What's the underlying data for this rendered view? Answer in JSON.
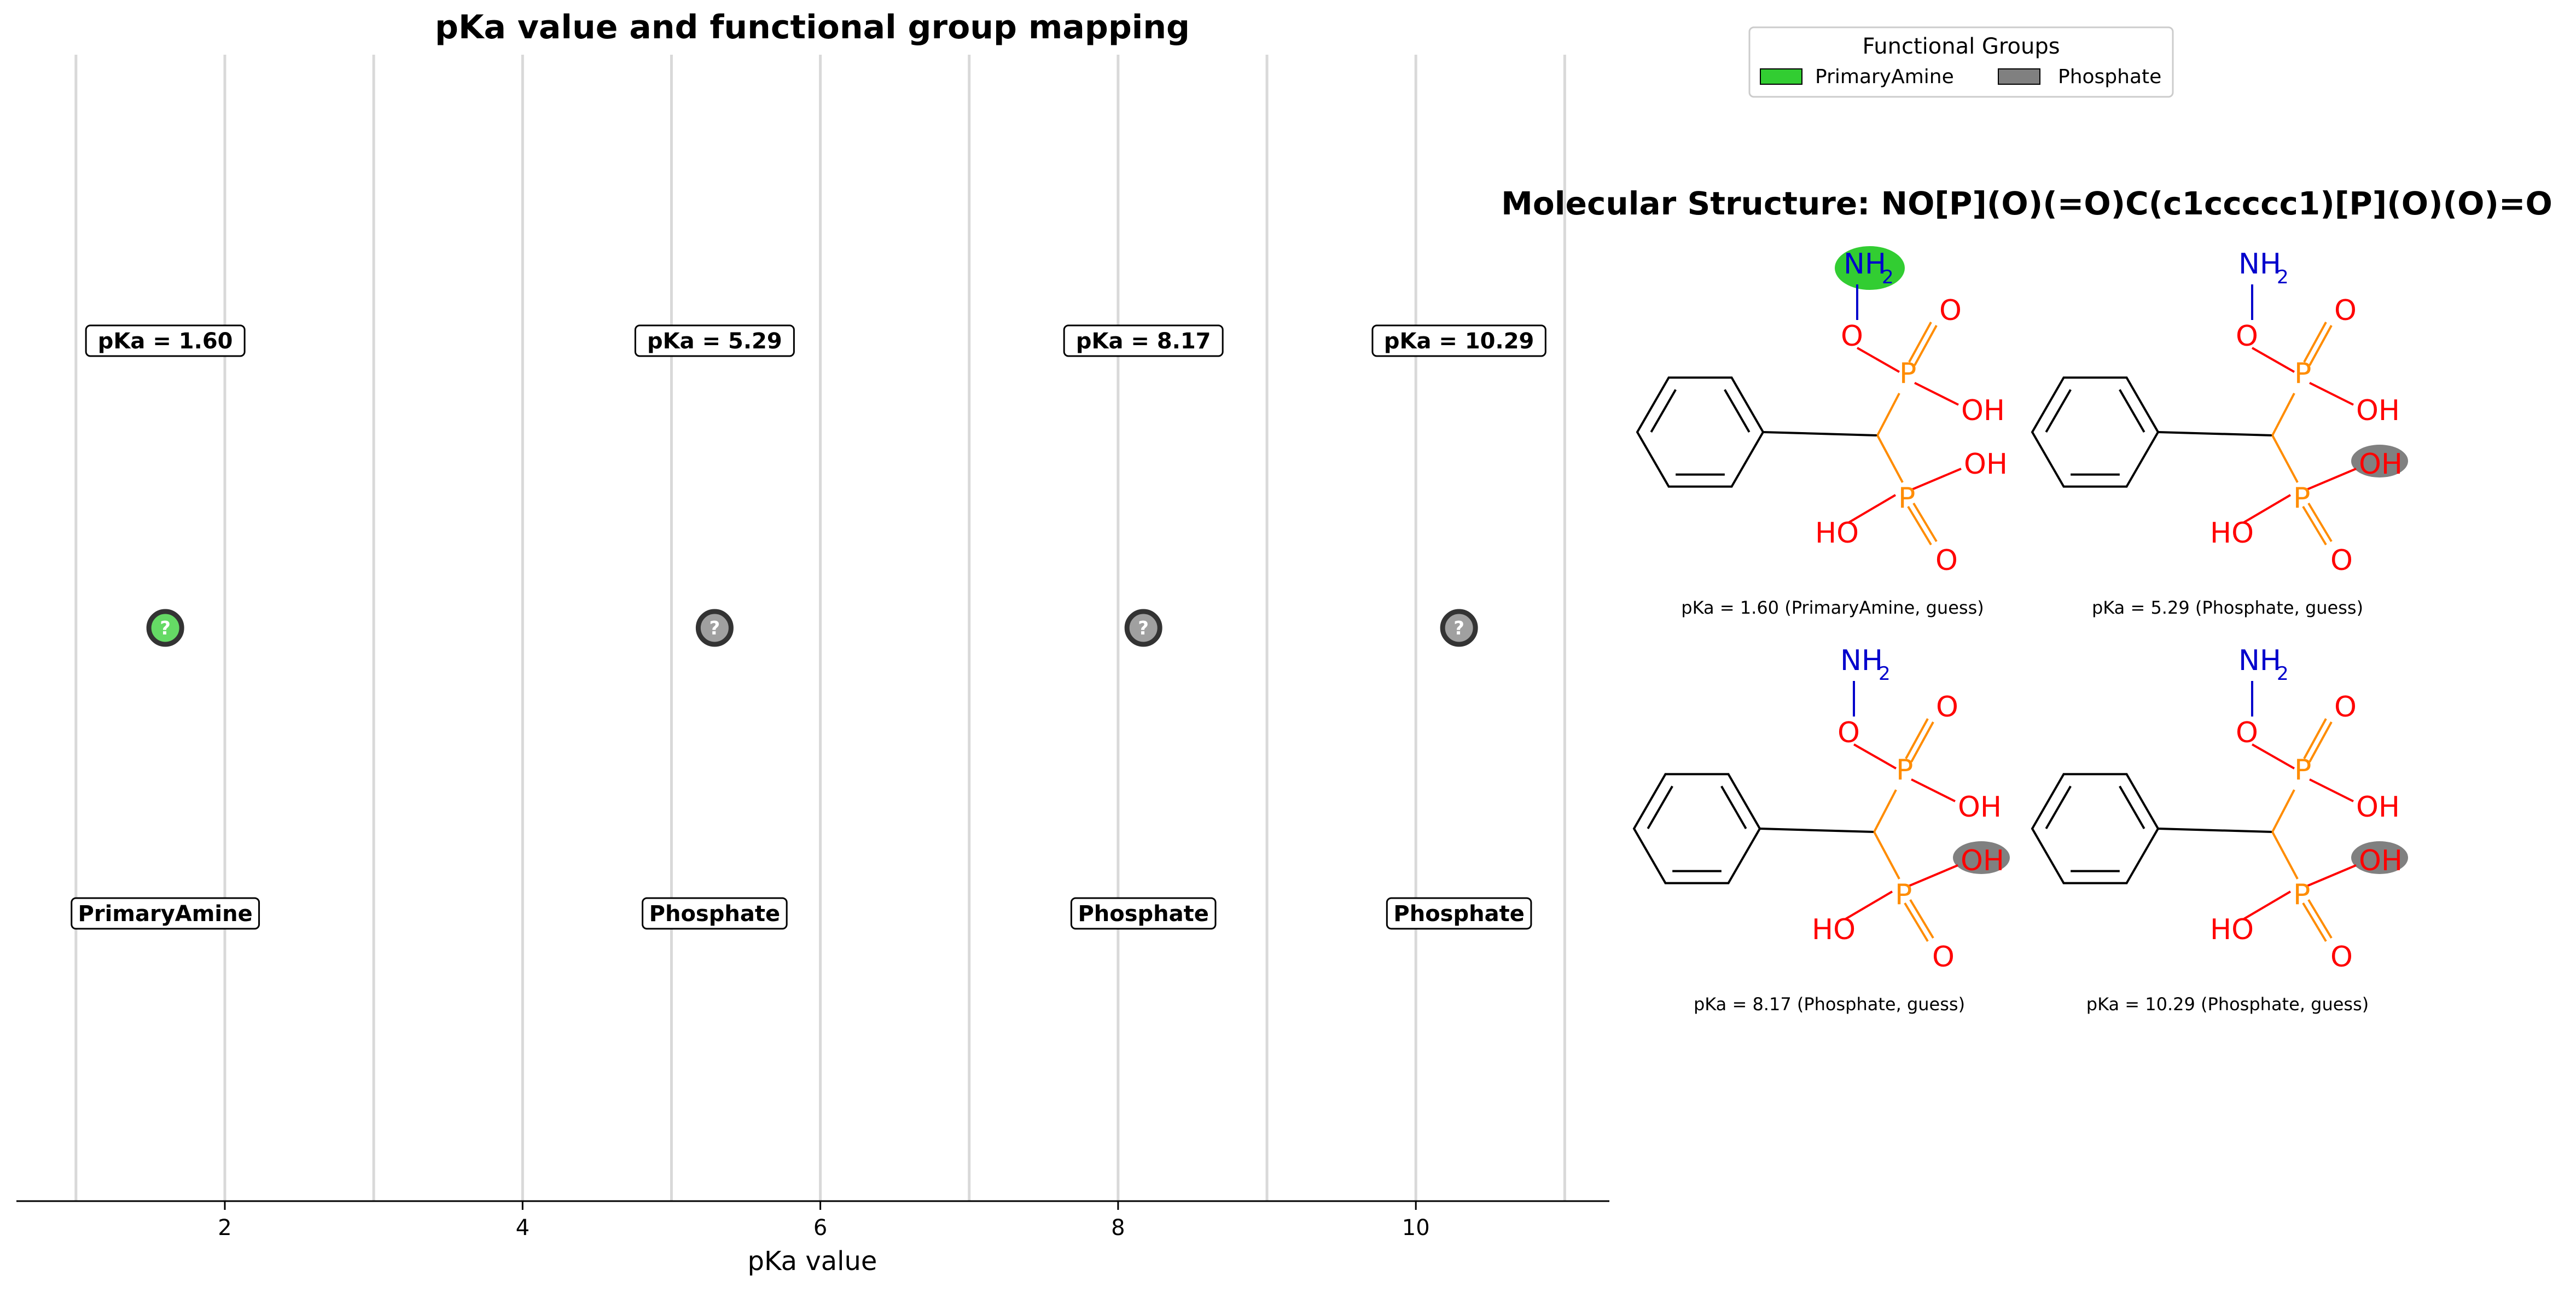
{
  "chart_data": {
    "type": "scatter",
    "title": "pKa value and functional group mapping",
    "xlabel": "pKa value",
    "ylabel": "",
    "xlim": [
      0.6,
      11.3
    ],
    "xticks": [
      2,
      4,
      6,
      8,
      10
    ],
    "xtick_labels": [
      "2",
      "4",
      "6",
      "8",
      "10"
    ],
    "grid": "vertical lines at 1 to 11",
    "points": [
      {
        "x": 1.6,
        "group": "PrimaryAmine",
        "value_label": "pKa = 1.60",
        "group_label": "PrimaryAmine",
        "marker_text": "?"
      },
      {
        "x": 5.29,
        "group": "Phosphate",
        "value_label": "pKa = 5.29",
        "group_label": "Phosphate",
        "marker_text": "?"
      },
      {
        "x": 8.17,
        "group": "Phosphate",
        "value_label": "pKa = 8.17",
        "group_label": "Phosphate",
        "marker_text": "?"
      },
      {
        "x": 10.29,
        "group": "Phosphate",
        "value_label": "pKa = 10.29",
        "group_label": "Phosphate",
        "marker_text": "?"
      }
    ],
    "colors": {
      "PrimaryAmine": "#32cd32",
      "Phosphate": "#808080"
    },
    "legend": {
      "title": "Functional Groups",
      "placement": "top-right",
      "entries": [
        {
          "name": "PrimaryAmine",
          "color": "#32cd32"
        },
        {
          "name": "Phosphate",
          "color": "#808080"
        }
      ]
    }
  },
  "molecule": {
    "title": "Molecular Structure: NO[P](O)(=O)C(c1ccccc1)[P](O)(O)=O",
    "panels": [
      {
        "caption": "pKa = 1.60 (PrimaryAmine, guess)",
        "highlight": "nh2"
      },
      {
        "caption": "pKa = 5.29 (Phosphate, guess)",
        "highlight": "oh-lower"
      },
      {
        "caption": "pKa = 8.17 (Phosphate, guess)",
        "highlight": "oh-lower"
      },
      {
        "caption": "pKa = 10.29 (Phosphate, guess)",
        "highlight": "oh-lower"
      }
    ],
    "atoms": {
      "nh2": "NH",
      "sub2": "2",
      "o": "O",
      "p": "P",
      "oh": "OH",
      "ho": "HO"
    }
  }
}
